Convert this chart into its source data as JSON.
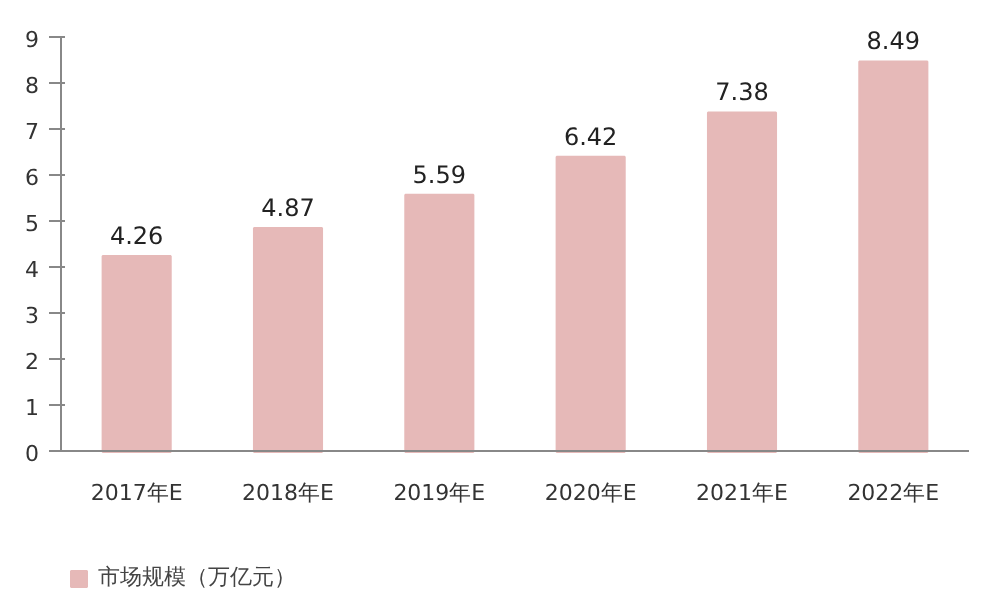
{
  "chart_data": {
    "type": "bar",
    "categories": [
      "2017年E",
      "2018年E",
      "2019年E",
      "2020年E",
      "2021年E",
      "2022年E"
    ],
    "series": [
      {
        "name": "市场规模（万亿元）",
        "color": "#e6b9b8",
        "values": [
          4.26,
          4.87,
          5.59,
          6.42,
          7.38,
          8.49
        ]
      }
    ],
    "ylim": [
      0,
      9
    ],
    "yticks": [
      0,
      1,
      2,
      3,
      4,
      5,
      6,
      7,
      8,
      9
    ],
    "data_labels": true,
    "legend": "bottom left"
  }
}
